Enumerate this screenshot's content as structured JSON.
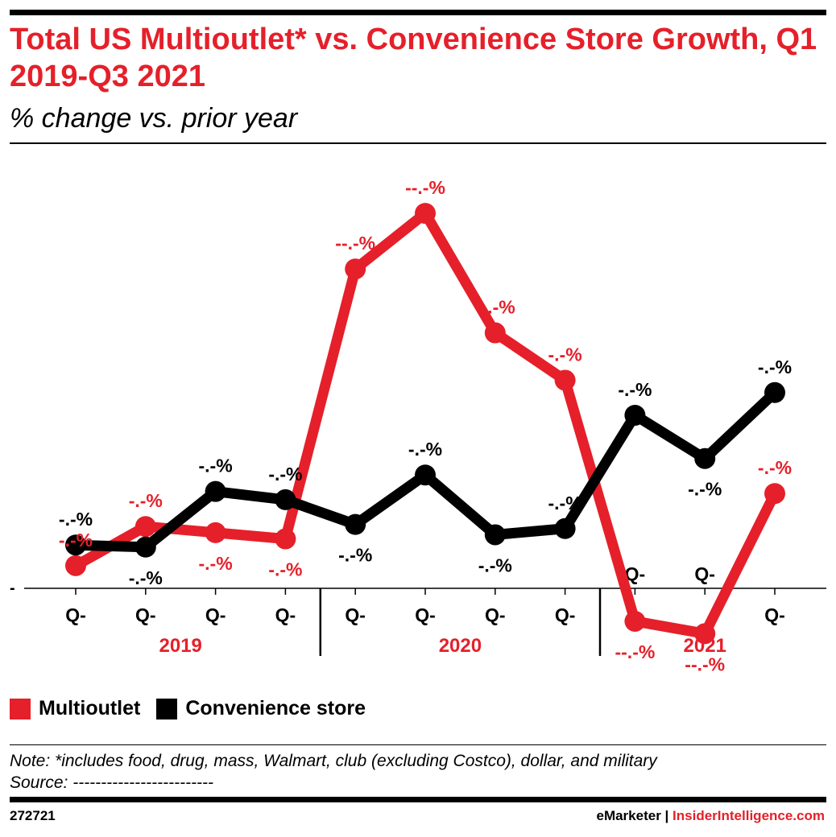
{
  "header": {
    "title": "Total US Multioutlet* vs. Convenience Store Growth, Q1 2019-Q3 2021",
    "subtitle": "% change vs. prior year"
  },
  "legend": [
    {
      "label": "Multioutlet",
      "color": "#e5202a"
    },
    {
      "label": "Convenience store",
      "color": "#000000"
    }
  ],
  "notes": {
    "note": "Note: *includes food, drug, mass, Walmart, club (excluding Costco), dollar, and military",
    "source": "Source: -------------------------"
  },
  "footer": {
    "id": "272721",
    "brand1": "eMarketer",
    "separator": "|",
    "brand2": "InsiderIntelligence.com"
  },
  "chart_data": {
    "type": "line",
    "categories": [
      "Q-",
      "Q-",
      "Q-",
      "Q-",
      "Q-",
      "Q-",
      "Q-",
      "Q-",
      "Q-",
      "Q-",
      "Q-"
    ],
    "year_groups": [
      {
        "label": "2019",
        "start": 0,
        "end": 3
      },
      {
        "label": "2020",
        "start": 4,
        "end": 7
      },
      {
        "label": "2021",
        "start": 8,
        "end": 10
      }
    ],
    "baseline_label": "-",
    "ylim": [
      -3,
      20
    ],
    "grid": false,
    "legend_position": "bottom-left",
    "series": [
      {
        "name": "Multioutlet",
        "color": "#e5202a",
        "values": [
          1.1,
          3.0,
          2.7,
          2.4,
          15.5,
          18.2,
          12.4,
          10.1,
          -1.6,
          -2.2,
          4.6
        ],
        "labels": [
          "-.-%",
          "-.-%",
          "-.-%",
          "-.-%",
          "--.-%",
          "--.-%",
          "--.-%",
          "-.-%",
          "--.-%",
          "--.-%",
          "-.-%"
        ],
        "label_pos": [
          "above",
          "above",
          "below",
          "below",
          "above",
          "above",
          "above",
          "above",
          "below",
          "below",
          "above"
        ]
      },
      {
        "name": "Convenience store",
        "color": "#000000",
        "values": [
          2.1,
          2.0,
          4.7,
          4.3,
          3.1,
          5.5,
          2.6,
          2.9,
          8.4,
          6.3,
          9.5
        ],
        "labels": [
          "-.-%",
          "-.-%",
          "-.-%",
          "-.-%",
          "-.-%",
          "-.-%",
          "-.-%",
          "-.-%",
          "-.-%",
          "-.-%",
          "-.-%"
        ],
        "label_pos": [
          "above",
          "below",
          "above",
          "above",
          "below",
          "above",
          "below",
          "above",
          "above",
          "below",
          "above"
        ]
      }
    ]
  }
}
